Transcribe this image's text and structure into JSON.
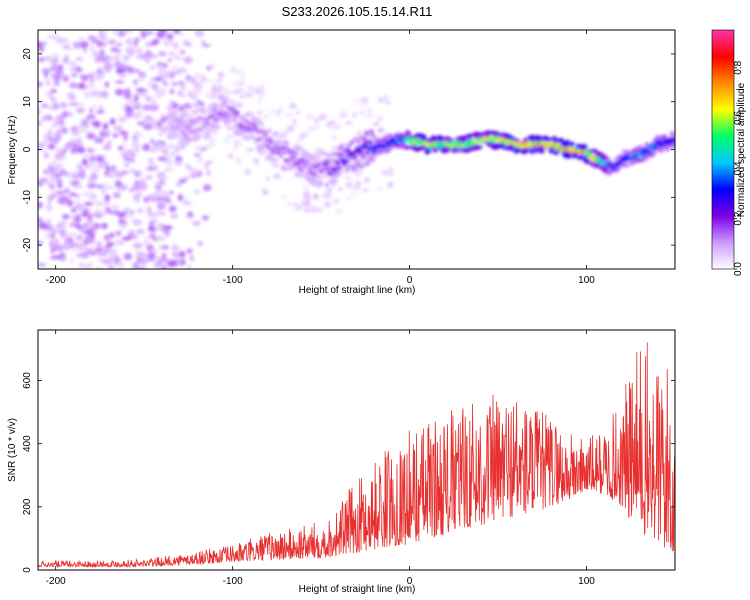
{
  "chart_data": [
    {
      "type": "heatmap",
      "title": "S233.2026.105.15.14.R11",
      "xlabel": "Height of straight line (km)",
      "ylabel": "Frequency (Hz)",
      "xlim": [
        -210,
        150
      ],
      "ylim": [
        -25,
        25
      ],
      "x_ticks": [
        -200,
        -100,
        0,
        100
      ],
      "x_tick_labels": [
        "-200",
        "-100",
        "0",
        "100"
      ],
      "y_ticks": [
        -20,
        -10,
        0,
        10,
        20
      ],
      "y_tick_labels": [
        "-20",
        "-10",
        "0",
        "10",
        "20"
      ],
      "colorbar": {
        "label": "Normalized spectral amplitude",
        "range": [
          0,
          0.95
        ],
        "ticks": [
          0.0,
          0.2,
          0.4,
          0.6,
          0.8
        ],
        "tick_labels": [
          "0.0",
          "0.2",
          "0.4",
          "0.6",
          "0.8"
        ],
        "colormap": [
          "#ffffff",
          "#cc99ff",
          "#7a00e6",
          "#0000ff",
          "#00c8ff",
          "#00ff66",
          "#ffff00",
          "#ff8800",
          "#ff0000",
          "#ff33aa"
        ]
      },
      "ridge": {
        "x": [
          -135,
          -125,
          -115,
          -105,
          -95,
          -85,
          -75,
          -65,
          -55,
          -45,
          -35,
          -25,
          -15,
          -5,
          0,
          10,
          20,
          30,
          40,
          50,
          60,
          70,
          80,
          90,
          100,
          110,
          115,
          120,
          130,
          140,
          150
        ],
        "frequency": [
          6,
          4,
          6,
          8,
          6,
          3,
          0,
          -2,
          -4,
          -4,
          -1,
          0,
          1,
          2,
          2,
          1,
          1,
          1,
          2,
          2,
          1,
          1,
          1,
          0,
          -1,
          -3,
          -4,
          -2,
          -1,
          1,
          2
        ],
        "amplitude": [
          0.1,
          0.12,
          0.12,
          0.15,
          0.15,
          0.15,
          0.15,
          0.16,
          0.15,
          0.2,
          0.25,
          0.3,
          0.35,
          0.4,
          0.55,
          0.7,
          0.6,
          0.6,
          0.6,
          0.65,
          0.7,
          0.7,
          0.7,
          0.8,
          0.7,
          0.5,
          0.35,
          0.3,
          0.4,
          0.35,
          0.3
        ]
      },
      "noise_region_x": [
        -210,
        -135
      ]
    },
    {
      "type": "line",
      "xlabel": "Height of straight line (km)",
      "ylabel": "SNR (10 * v/v)",
      "xlim": [
        -210,
        150
      ],
      "ylim": [
        0,
        760
      ],
      "x_ticks": [
        -200,
        -100,
        0,
        100
      ],
      "x_tick_labels": [
        "-200",
        "-100",
        "0",
        "100"
      ],
      "y_ticks": [
        0,
        200,
        400,
        600
      ],
      "y_tick_labels": [
        "0",
        "200",
        "400",
        "600"
      ],
      "series": [
        {
          "name": "SNR",
          "color": "#e83030",
          "envelope_x": [
            -210,
            -180,
            -150,
            -130,
            -100,
            -80,
            -60,
            -45,
            -35,
            -25,
            -15,
            -5,
            0,
            10,
            20,
            30,
            40,
            50,
            60,
            70,
            80,
            90,
            100,
            110,
            120,
            125,
            130,
            140,
            150
          ],
          "envelope_min": [
            10,
            10,
            10,
            15,
            25,
            30,
            35,
            40,
            50,
            60,
            70,
            80,
            80,
            100,
            110,
            130,
            140,
            160,
            170,
            180,
            200,
            220,
            250,
            240,
            200,
            150,
            120,
            80,
            40
          ],
          "envelope_max": [
            30,
            30,
            35,
            50,
            80,
            120,
            140,
            170,
            250,
            320,
            380,
            420,
            450,
            480,
            500,
            530,
            560,
            560,
            580,
            520,
            500,
            440,
            420,
            450,
            550,
            650,
            740,
            700,
            650
          ]
        }
      ]
    }
  ]
}
